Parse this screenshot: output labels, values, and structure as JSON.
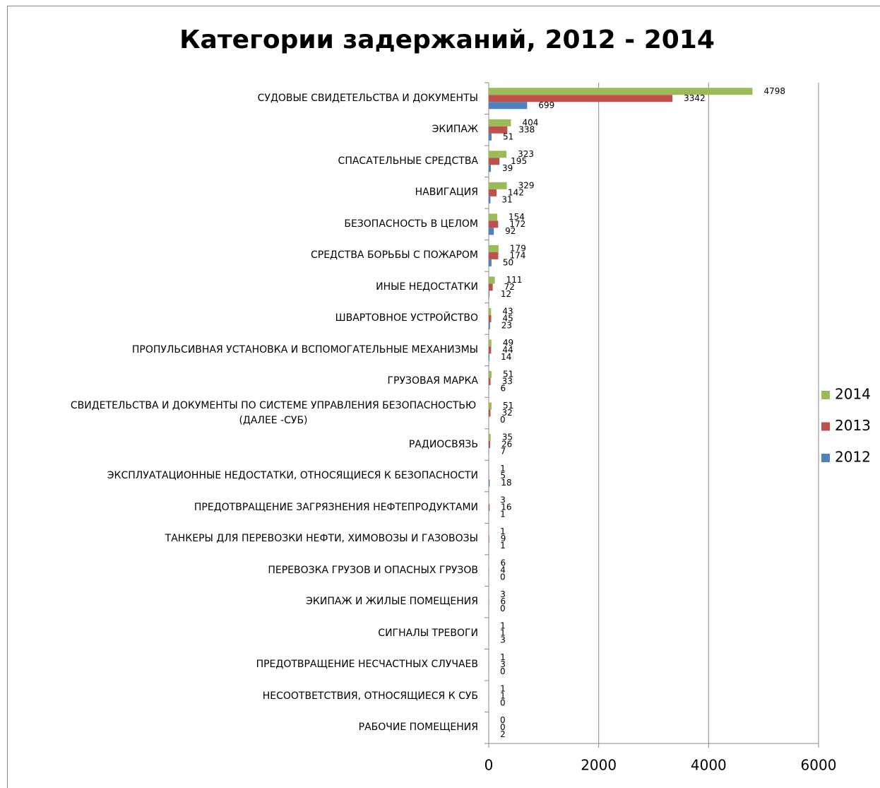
{
  "chart_data": {
    "type": "bar",
    "orientation": "horizontal",
    "title": "Категории задержаний, 2012 - 2014",
    "categories": [
      "СУДОВЫЕ СВИДЕТЕЛЬСТВА И ДОКУМЕНТЫ",
      "ЭКИПАЖ",
      "СПАСАТЕЛЬНЫЕ СРЕДСТВА",
      "НАВИГАЦИЯ",
      "БЕЗОПАСНОСТЬ В ЦЕЛОМ",
      "СРЕДСТВА БОРЬБЫ С ПОЖАРОМ",
      "ИНЫЕ НЕДОСТАТКИ",
      "ШВАРТОВНОЕ УСТРОЙСТВО",
      "ПРОПУЛЬСИВНАЯ УСТАНОВКА И ВСПОМОГАТЕЛЬНЫЕ МЕХАНИЗМЫ",
      "ГРУЗОВАЯ МАРКА",
      "СВИДЕТЕЛЬСТВА И ДОКУМЕНТЫ ПО СИСТЕМЕ УПРАВЛЕНИЯ БЕЗОПАСНОСТЬЮ (ДАЛЕЕ -СУБ)",
      "РАДИОСВЯЗЬ",
      "ЭКСПЛУАТАЦИОННЫЕ НЕДОСТАТКИ, ОТНОСЯЩИЕСЯ К БЕЗОПАСНОСТИ",
      "ПРЕДОТВРАЩЕНИЕ ЗАГРЯЗНЕНИЯ НЕФТЕПРОДУКТАМИ",
      "ТАНКЕРЫ ДЛЯ ПЕРЕВОЗКИ НЕФТИ, ХИМОВОЗЫ И ГАЗОВОЗЫ",
      "ПЕРЕВОЗКА ГРУЗОВ И ОПАСНЫХ ГРУЗОВ",
      "ЭКИПАЖ И ЖИЛЫЕ ПОМЕЩЕНИЯ",
      "СИГНАЛЫ ТРЕВОГИ",
      "ПРЕДОТВРАЩЕНИЕ НЕСЧАСТНЫХ СЛУЧАЕВ",
      "НЕСООТВЕТСТВИЯ, ОТНОСЯЩИЕСЯ К СУБ",
      "РАБОЧИЕ ПОМЕЩЕНИЯ"
    ],
    "series": [
      {
        "name": "2014",
        "color": "#9bbb59",
        "values": [
          4798,
          404,
          323,
          329,
          154,
          179,
          111,
          43,
          49,
          51,
          51,
          35,
          1,
          3,
          1,
          6,
          3,
          1,
          1,
          1,
          0
        ]
      },
      {
        "name": "2013",
        "color": "#c0504d",
        "values": [
          3342,
          338,
          195,
          142,
          172,
          174,
          72,
          45,
          44,
          33,
          32,
          26,
          5,
          16,
          9,
          4,
          6,
          1,
          3,
          1,
          0
        ]
      },
      {
        "name": "2012",
        "color": "#4f81bd",
        "values": [
          699,
          51,
          39,
          31,
          92,
          50,
          12,
          23,
          14,
          6,
          0,
          7,
          18,
          1,
          1,
          0,
          0,
          3,
          0,
          0,
          2
        ]
      }
    ],
    "xlim": [
      0,
      6000
    ],
    "xticks": [
      0,
      2000,
      4000,
      6000
    ],
    "grid": true,
    "legend": "right"
  }
}
